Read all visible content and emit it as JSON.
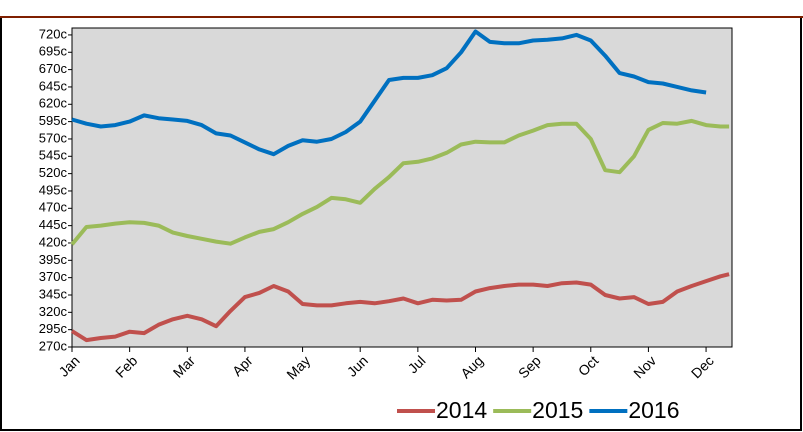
{
  "chart_data": {
    "type": "line",
    "x": [
      0,
      0.25,
      0.5,
      0.75,
      1,
      1.25,
      1.5,
      1.75,
      2,
      2.25,
      2.5,
      2.75,
      3,
      3.25,
      3.5,
      3.75,
      4,
      4.25,
      4.5,
      4.75,
      5,
      5.25,
      5.5,
      5.75,
      6,
      6.25,
      6.5,
      6.75,
      7,
      7.25,
      7.5,
      7.75,
      8,
      8.25,
      8.5,
      8.75,
      9,
      9.25,
      9.5,
      9.75,
      10,
      10.25,
      10.5,
      10.75,
      11,
      11.25,
      11.4
    ],
    "xlim": [
      0,
      11.45
    ],
    "xticks": [
      {
        "value": 0,
        "label": "Jan"
      },
      {
        "value": 1,
        "label": "Feb"
      },
      {
        "value": 2,
        "label": "Mar"
      },
      {
        "value": 3,
        "label": "Apr"
      },
      {
        "value": 4,
        "label": "May"
      },
      {
        "value": 5,
        "label": "Jun"
      },
      {
        "value": 6,
        "label": "Jul"
      },
      {
        "value": 7,
        "label": "Aug"
      },
      {
        "value": 8,
        "label": "Sep"
      },
      {
        "value": 9,
        "label": "Oct"
      },
      {
        "value": 10,
        "label": "Nov"
      },
      {
        "value": 11,
        "label": "Dec"
      }
    ],
    "ylim": [
      270,
      730
    ],
    "yticks": [
      {
        "value": 270,
        "label": "270c"
      },
      {
        "value": 295,
        "label": "295c"
      },
      {
        "value": 320,
        "label": "320c"
      },
      {
        "value": 345,
        "label": "345c"
      },
      {
        "value": 370,
        "label": "370c"
      },
      {
        "value": 395,
        "label": "395c"
      },
      {
        "value": 420,
        "label": "420c"
      },
      {
        "value": 445,
        "label": "445c"
      },
      {
        "value": 470,
        "label": "470c"
      },
      {
        "value": 495,
        "label": "495c"
      },
      {
        "value": 520,
        "label": "520c"
      },
      {
        "value": 545,
        "label": "545c"
      },
      {
        "value": 570,
        "label": "570c"
      },
      {
        "value": 595,
        "label": "595c"
      },
      {
        "value": 620,
        "label": "620c"
      },
      {
        "value": 645,
        "label": "645c"
      },
      {
        "value": 670,
        "label": "670c"
      },
      {
        "value": 695,
        "label": "695c"
      },
      {
        "value": 720,
        "label": "720c"
      }
    ],
    "legend": "lower right",
    "series": [
      {
        "name": "2014",
        "color": "#c0504d",
        "values": [
          293,
          280,
          283,
          285,
          292,
          290,
          302,
          310,
          315,
          310,
          300,
          322,
          342,
          348,
          358,
          350,
          332,
          330,
          330,
          333,
          335,
          333,
          336,
          340,
          333,
          338,
          337,
          338,
          350,
          355,
          358,
          360,
          360,
          358,
          362,
          363,
          360,
          345,
          340,
          342,
          332,
          335,
          350,
          358,
          365,
          372,
          375
        ]
      },
      {
        "name": "2015",
        "color": "#9bbb59",
        "values": [
          418,
          443,
          445,
          448,
          450,
          449,
          445,
          435,
          430,
          426,
          422,
          419,
          428,
          436,
          440,
          450,
          462,
          472,
          485,
          483,
          478,
          498,
          515,
          535,
          537,
          542,
          550,
          562,
          566,
          565,
          565,
          575,
          582,
          590,
          592,
          592,
          570,
          525,
          522,
          545,
          583,
          593,
          592,
          596,
          590,
          588,
          588
        ]
      },
      {
        "name": "2016",
        "color": "#0070c0",
        "values": [
          598,
          592,
          588,
          590,
          595,
          604,
          600,
          598,
          596,
          590,
          578,
          575,
          565,
          555,
          548,
          560,
          568,
          566,
          570,
          580,
          595,
          625,
          655,
          658,
          658,
          662,
          672,
          695,
          725,
          710,
          708,
          708,
          712,
          713,
          715,
          720,
          712,
          690,
          665,
          660,
          652,
          650,
          645,
          640,
          637,
          null,
          null
        ]
      }
    ]
  }
}
